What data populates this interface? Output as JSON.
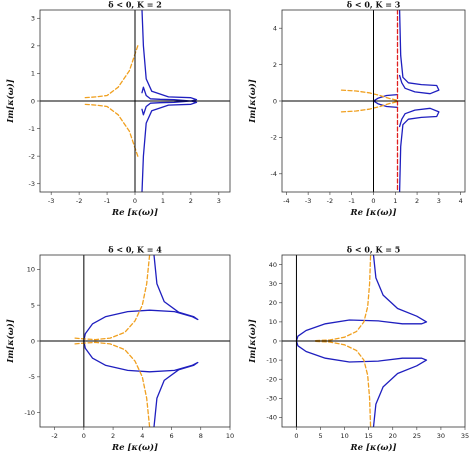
{
  "figure": {
    "colors": {
      "solid": "#1f1fbf",
      "dashed": "#f0a020",
      "axes": "#000000",
      "frame": "#333333"
    }
  },
  "chart_data": [
    {
      "type": "line",
      "title": "δ < 0, K = 2",
      "xlabel": "Re [κ(ω)]",
      "ylabel": "Im[κ(ω)]",
      "xlim": [
        -3.4,
        3.4
      ],
      "ylim": [
        -3.3,
        3.3
      ],
      "xticks": [
        "-3",
        "-2",
        "-1",
        "0",
        "1",
        "2",
        "3"
      ],
      "yticks": [
        "-3",
        "-2",
        "-1",
        "0",
        "1",
        "2",
        "3"
      ],
      "grid": false,
      "series": [
        {
          "style": "solid",
          "color": "#1f1fbf",
          "x": [
            0.25,
            0.3,
            0.4,
            0.6,
            1.2,
            2.0,
            2.2,
            2.0,
            1.4,
            0.9,
            0.55,
            0.4,
            0.3,
            0.25
          ],
          "y": [
            3.3,
            2.0,
            0.8,
            0.35,
            0.15,
            0.12,
            0.05,
            0.0,
            0.05,
            0.06,
            0.08,
            0.2,
            0.5,
            0.3
          ]
        },
        {
          "style": "solid",
          "color": "#1f1fbf",
          "x": [
            0.25,
            0.3,
            0.4,
            0.6,
            1.2,
            2.0,
            2.2,
            2.0,
            1.4,
            0.9,
            0.55,
            0.4,
            0.3,
            0.25
          ],
          "y": [
            -3.3,
            -2.0,
            -0.8,
            -0.35,
            -0.15,
            -0.12,
            -0.05,
            0.0,
            -0.05,
            -0.06,
            -0.08,
            -0.2,
            -0.5,
            -0.3
          ]
        },
        {
          "style": "dashed",
          "color": "#f0a020",
          "x": [
            0.1,
            -0.2,
            -0.6,
            -1.0,
            -1.4,
            -1.8
          ],
          "y": [
            2.0,
            1.1,
            0.5,
            0.2,
            0.15,
            0.12
          ]
        },
        {
          "style": "dashed",
          "color": "#f0a020",
          "x": [
            0.1,
            -0.2,
            -0.6,
            -1.0,
            -1.4,
            -1.8
          ],
          "y": [
            -2.0,
            -1.1,
            -0.5,
            -0.2,
            -0.15,
            -0.12
          ]
        }
      ]
    },
    {
      "type": "line",
      "title": "δ < 0, K = 3",
      "xlabel": "Re [κ(ω)]",
      "ylabel": "Im[κ(ω)]",
      "xlim": [
        -4.2,
        4.2
      ],
      "ylim": [
        -5,
        5
      ],
      "xticks": [
        "-4",
        "-3",
        "-2",
        "-1",
        "0",
        "1",
        "2",
        "3",
        "4"
      ],
      "yticks": [
        "-4",
        "-2",
        "0",
        "2",
        "4"
      ],
      "grid": false,
      "series": [
        {
          "style": "solid",
          "color": "#1f1fbf",
          "x": [
            1.2,
            1.25,
            1.35,
            1.6,
            2.2,
            2.9,
            3.0,
            2.6,
            1.9,
            1.45,
            1.3,
            1.2
          ],
          "y": [
            5,
            2.5,
            1.3,
            1.0,
            0.9,
            0.85,
            0.6,
            0.4,
            0.5,
            0.7,
            1.0,
            1.4
          ]
        },
        {
          "style": "solid",
          "color": "#1f1fbf",
          "x": [
            1.2,
            1.25,
            1.35,
            1.6,
            2.2,
            2.9,
            3.0,
            2.6,
            1.9,
            1.45,
            1.3,
            1.2
          ],
          "y": [
            -5,
            -2.5,
            -1.3,
            -1.0,
            -0.9,
            -0.85,
            -0.6,
            -0.4,
            -0.5,
            -0.7,
            -1.0,
            -1.4
          ]
        },
        {
          "style": "solid",
          "color": "#1f1fbf",
          "x": [
            1.1,
            0.6,
            0.2,
            0.0,
            0.2,
            0.6,
            1.1
          ],
          "y": [
            0.35,
            0.3,
            0.15,
            0.0,
            -0.15,
            -0.3,
            -0.35
          ]
        },
        {
          "style": "dashed",
          "color": "#f0a020",
          "x": [
            1.05,
            0.7,
            0.3,
            -0.2,
            -0.8,
            -1.5
          ],
          "y": [
            0.05,
            0.15,
            0.3,
            0.45,
            0.55,
            0.6
          ]
        },
        {
          "style": "dashed",
          "color": "#f0a020",
          "x": [
            1.05,
            0.7,
            0.3,
            -0.2,
            -0.8,
            -1.5
          ],
          "y": [
            -0.05,
            -0.15,
            -0.3,
            -0.45,
            -0.55,
            -0.6
          ]
        },
        {
          "style": "dashed",
          "color": "#e02020",
          "x": [
            1.1,
            1.1
          ],
          "y": [
            5,
            -5
          ]
        }
      ]
    },
    {
      "type": "line",
      "title": "δ < 0, K = 4",
      "xlabel": "Re [κ(ω)]",
      "ylabel": "Im[κ(ω)]",
      "xlim": [
        -3,
        10
      ],
      "ylim": [
        -12,
        12
      ],
      "xticks": [
        "-2",
        "0",
        "2",
        "4",
        "6",
        "8",
        "10"
      ],
      "yticks": [
        "-10",
        "-5",
        "0",
        "5",
        "10"
      ],
      "grid": false,
      "series": [
        {
          "style": "solid",
          "color": "#1f1fbf",
          "x": [
            4.8,
            5.0,
            5.5,
            6.5,
            7.5,
            7.8,
            7.4,
            6.2,
            4.5,
            3.0,
            1.5,
            0.6,
            0.1,
            0.0,
            0.1,
            0.6,
            1.5,
            3.0,
            4.5,
            6.2,
            7.4,
            7.8,
            7.5,
            6.5,
            5.5,
            5.0,
            4.8
          ],
          "y": [
            12,
            8,
            5.5,
            4.0,
            3.4,
            3.0,
            3.4,
            4.1,
            4.3,
            4.1,
            3.4,
            2.4,
            1.0,
            0.0,
            -1.0,
            -2.4,
            -3.4,
            -4.1,
            -4.3,
            -4.1,
            -3.4,
            -3.0,
            -3.4,
            -4.0,
            -5.5,
            -8,
            -12
          ]
        },
        {
          "style": "dashed",
          "color": "#f0a020",
          "x": [
            -0.6,
            0.0,
            0.8,
            1.8,
            2.8,
            3.5,
            4.0,
            4.3,
            4.5
          ],
          "y": [
            0.4,
            0.3,
            0.2,
            0.4,
            1.2,
            2.8,
            5.0,
            8.0,
            12
          ]
        },
        {
          "style": "dashed",
          "color": "#f0a020",
          "x": [
            -0.6,
            0.0,
            0.8,
            1.8,
            2.8,
            3.5,
            4.0,
            4.3,
            4.5
          ],
          "y": [
            -0.4,
            -0.3,
            -0.2,
            -0.4,
            -1.2,
            -2.8,
            -5.0,
            -8.0,
            -12
          ]
        }
      ]
    },
    {
      "type": "line",
      "title": "δ < 0, K = 5",
      "xlabel": "Re [κ(ω)]",
      "ylabel": "Im[κ(ω)]",
      "xlim": [
        -3,
        35
      ],
      "ylim": [
        -45,
        45
      ],
      "xticks": [
        "0",
        "5",
        "10",
        "15",
        "20",
        "25",
        "30",
        "35"
      ],
      "yticks": [
        "-40",
        "-30",
        "-20",
        "-10",
        "0",
        "10",
        "20",
        "30",
        "40"
      ],
      "grid": false,
      "series": [
        {
          "style": "solid",
          "color": "#1f1fbf",
          "x": [
            16,
            16.5,
            18,
            21,
            25,
            27,
            26,
            22,
            17,
            11,
            6,
            2,
            0.3,
            0.0,
            0.3,
            2,
            6,
            11,
            17,
            22,
            26,
            27,
            25,
            21,
            18,
            16.5,
            16
          ],
          "y": [
            45,
            33,
            24,
            17,
            13,
            10,
            9,
            9,
            10.5,
            11,
            9,
            5.5,
            2.5,
            0.0,
            -2.5,
            -5.5,
            -9,
            -11,
            -10.5,
            -9,
            -9,
            -10,
            -13,
            -17,
            -24,
            -33,
            -45
          ]
        },
        {
          "style": "dashed",
          "color": "#f0a020",
          "x": [
            4,
            7,
            10,
            12.5,
            14,
            14.8,
            15.2,
            15.4
          ],
          "y": [
            0.2,
            0.6,
            2.0,
            5,
            10,
            18,
            30,
            45
          ]
        },
        {
          "style": "dashed",
          "color": "#f0a020",
          "x": [
            4,
            7,
            10,
            12.5,
            14,
            14.8,
            15.2,
            15.4
          ],
          "y": [
            -0.2,
            -0.6,
            -2.0,
            -5,
            -10,
            -18,
            -30,
            -45
          ]
        }
      ]
    }
  ]
}
